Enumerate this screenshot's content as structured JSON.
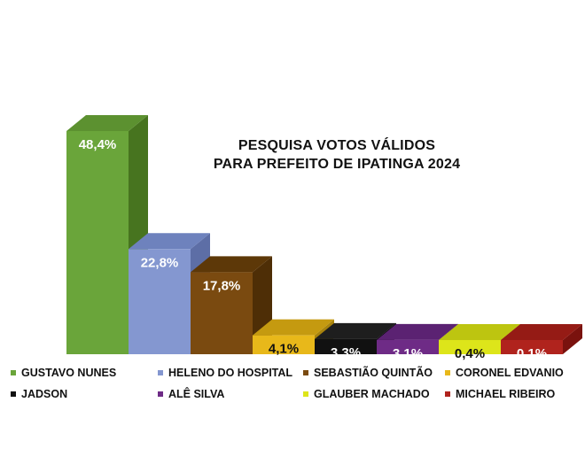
{
  "chart_data": {
    "type": "bar",
    "title": "PESQUISA VOTOS VÁLIDOS",
    "subtitle": "PARA PREFEITO DE IPATINGA 2024",
    "categories": [
      "GUSTAVO NUNES",
      "HELENO DO HOSPITAL",
      "SEBASTIÃO QUINTÃO",
      "CORONEL EDVANIO",
      "JADSON",
      "ALÊ SILVA",
      "GLAUBER MACHADO",
      "MICHAEL RIBEIRO"
    ],
    "values": [
      48.4,
      22.8,
      17.8,
      4.1,
      3.3,
      3.1,
      0.4,
      0.1
    ],
    "data_labels": [
      "48,4%",
      "22,8%",
      "17,8%",
      "4,1%",
      "3,3%",
      "3,1%",
      "0,4%",
      "0,1%"
    ],
    "unit": "%",
    "ylim": [
      0,
      50
    ],
    "grid": false,
    "legend_position": "bottom",
    "colors": [
      "#6aa53a",
      "#8497d0",
      "#7a4a10",
      "#e8b81a",
      "#111111",
      "#6e2b86",
      "#dde51a",
      "#b0231d"
    ],
    "side_colors": [
      "#47741f",
      "#5d6ea6",
      "#4e2e06",
      "#a8830c",
      "#000000",
      "#4a1a5c",
      "#a1a70c",
      "#7a120e"
    ],
    "top_colors": [
      "#5c9130",
      "#6e82bd",
      "#5d3808",
      "#c59a10",
      "#1e1e1e",
      "#5b2272",
      "#bdc510",
      "#951b15"
    ],
    "label_colors": [
      "#ffffff",
      "#ffffff",
      "#ffffff",
      "#111111",
      "#ffffff",
      "#ffffff",
      "#111111",
      "#ffffff"
    ]
  }
}
